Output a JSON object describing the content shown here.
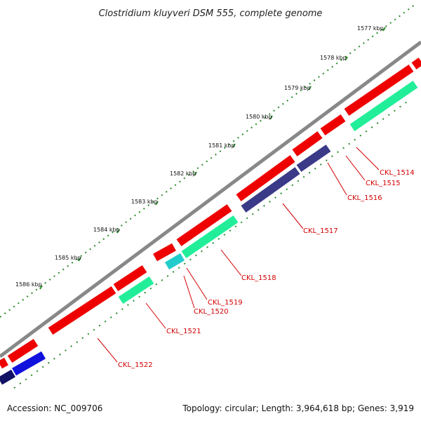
{
  "title": "Clostridium kluyveri DSM 555, complete genome",
  "footer": {
    "accession": "Accession: NC_009706",
    "summary": "Topology: circular; Length: 3,964,618 bp; Genes: 3,919"
  },
  "colors": {
    "backbone": "#888888",
    "tick": "#2a8a2a",
    "cds_forward": "#ee0000",
    "cds_reverse_green": "#22ee99",
    "cds_reverse_blue": "#3a3a88",
    "cds_cyan": "#22cccc",
    "label": "#d40000"
  },
  "scale_labels": [
    "1577 kbp",
    "1578 kbp",
    "1579 kbp",
    "1580 kbp",
    "1581 kbp",
    "1582 kbp",
    "1583 kbp",
    "1584 kbp",
    "1585 kbp",
    "1586 kbp"
  ],
  "gene_labels": [
    "CKL_1514",
    "CKL_1515",
    "CKL_1516",
    "CKL_1517",
    "CKL_1518",
    "CKL_1519",
    "CKL_1520",
    "CKL_1521",
    "CKL_1522"
  ]
}
